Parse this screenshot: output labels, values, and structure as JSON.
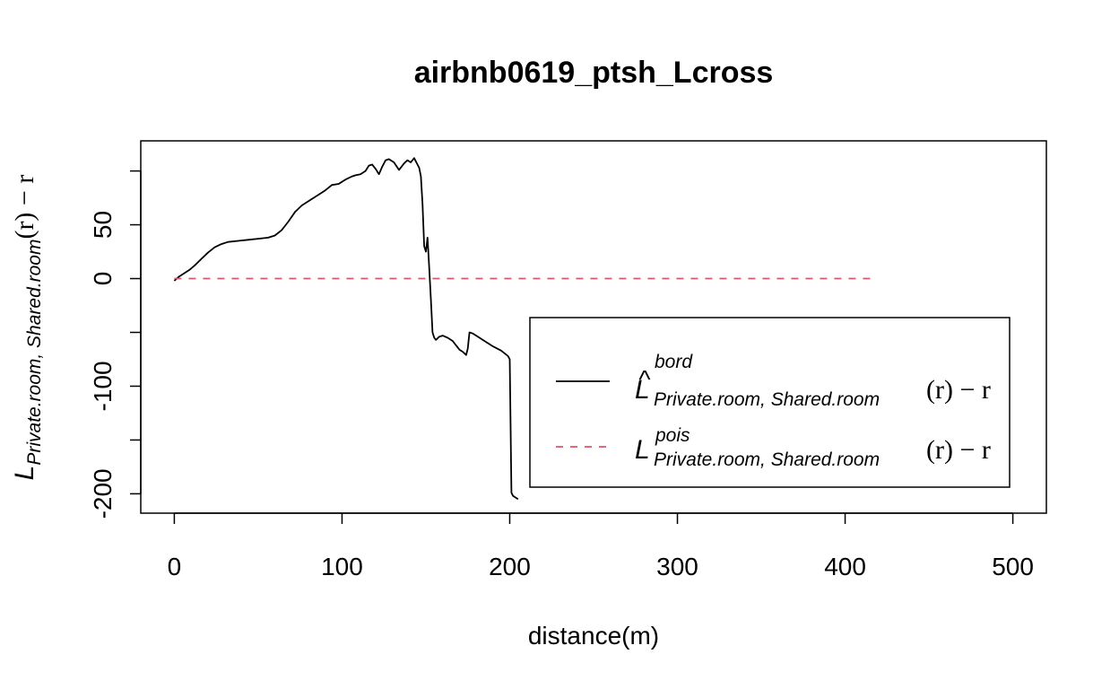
{
  "chart_data": {
    "type": "line",
    "title": "airbnb0619_ptsh_Lcross",
    "xlabel": "distance(m)",
    "ylabel": {
      "main": "L",
      "sub": "Private.room, Shared.room",
      "rest": "(r) − r"
    },
    "xlim": [
      -20,
      520
    ],
    "ylim": [
      -218,
      128
    ],
    "x_ticks": [
      0,
      100,
      200,
      300,
      400,
      500
    ],
    "y_ticks": [
      -200,
      -150,
      -100,
      -50,
      0,
      50,
      100
    ],
    "y_tick_labels": [
      "-200",
      "",
      "-100",
      "",
      "0",
      "50",
      ""
    ],
    "grid": false,
    "legend_position": "bottom-right",
    "legend": [
      {
        "main": "L",
        "hat": "^",
        "sup": "bord",
        "sub": "Private.room, Shared.room",
        "rest": "(r) − r",
        "style": "solid",
        "color": "#000000"
      },
      {
        "main": "L",
        "hat": "",
        "sup": "pois",
        "sub": "Private.room, Shared.room",
        "rest": "(r) − r",
        "style": "dashed",
        "color": "#DF536B"
      }
    ],
    "series": [
      {
        "key": "bord",
        "color": "#000000",
        "dash": "none",
        "x": [
          0,
          3,
          6,
          9,
          12,
          16,
          20,
          24,
          28,
          32,
          38,
          44,
          50,
          56,
          60,
          64,
          68,
          72,
          76,
          80,
          85,
          90,
          94,
          98,
          102,
          106,
          108,
          111,
          114,
          116,
          118,
          120,
          122,
          124,
          126,
          128,
          131,
          134,
          137,
          139,
          141,
          143,
          145,
          146,
          147,
          148,
          149,
          150,
          151,
          152,
          153,
          154,
          155,
          156,
          158,
          160,
          163,
          166,
          168,
          170,
          172,
          174,
          175,
          176,
          178,
          181,
          185,
          190,
          195,
          199,
          200,
          201,
          202,
          203,
          205
        ],
        "y": [
          -2,
          2,
          5,
          8,
          12,
          18,
          24,
          29,
          32,
          34,
          35,
          36,
          37,
          38,
          40,
          45,
          53,
          62,
          68,
          72,
          77,
          82,
          87,
          88,
          92,
          95,
          96,
          97,
          100,
          105,
          106,
          102,
          97,
          104,
          110,
          111,
          108,
          101,
          107,
          110,
          108,
          112,
          106,
          103,
          95,
          70,
          30,
          25,
          38,
          10,
          -20,
          -50,
          -55,
          -57,
          -54,
          -53,
          -55,
          -58,
          -62,
          -66,
          -68,
          -71,
          -65,
          -50,
          -51,
          -54,
          -58,
          -63,
          -67,
          -72,
          -75,
          -199,
          -202,
          -203,
          -205
        ]
      },
      {
        "key": "pois",
        "color": "#DF536B",
        "dash": "8,8",
        "x": [
          0,
          418
        ],
        "y": [
          0,
          0
        ]
      }
    ]
  }
}
